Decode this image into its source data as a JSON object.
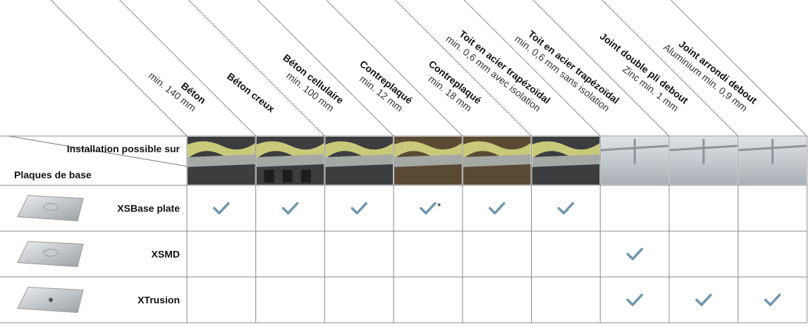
{
  "corner": {
    "top": "Installation possible sur",
    "bottom": "Plaques de base"
  },
  "columns": [
    {
      "title": "Béton",
      "subtitle": "min. 140 mm"
    },
    {
      "title": "Béton creux"
    },
    {
      "title": "Béton cellulaire",
      "subtitle": "min. 100 mm"
    },
    {
      "title": "Contreplaqué",
      "subtitle": "min. 12 mm"
    },
    {
      "title": "Contreplaqué",
      "subtitle": "min. 18 mm"
    },
    {
      "title": "Toit en acier trapézoïdal",
      "subtitle": "min. 0,6 mm avec isolation"
    },
    {
      "title": "Toit en acier trapézoïdal",
      "subtitle": "min. 0,6 mm sans isolation"
    },
    {
      "title": "Joint double pli debout",
      "subtitle": "Zinc min. 1 mm"
    },
    {
      "title": "Joint arrondi debout",
      "subtitle": "Aluminium min. 0,9 mm"
    }
  ],
  "rows": [
    {
      "name": "XSBase plate",
      "cells": [
        {
          "check": true
        },
        {
          "check": true
        },
        {
          "check": true
        },
        {
          "check": true,
          "mark": "*"
        },
        {
          "check": true
        },
        {
          "check": true
        },
        null,
        null,
        null
      ]
    },
    {
      "name": "XSMD",
      "cells": [
        null,
        null,
        null,
        null,
        null,
        null,
        {
          "check": true
        },
        null,
        null
      ]
    },
    {
      "name": "XTrusion",
      "cells": [
        null,
        null,
        null,
        null,
        null,
        null,
        {
          "check": true
        },
        {
          "check": true
        },
        {
          "check": true
        }
      ]
    }
  ]
}
